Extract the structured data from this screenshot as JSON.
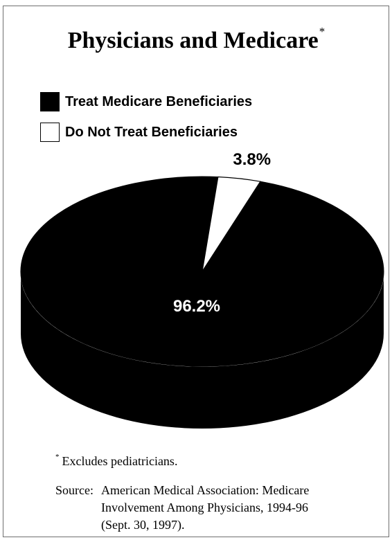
{
  "title": "Physicians and Medicare",
  "title_marker": "*",
  "legend": [
    {
      "label": "Treat Medicare Beneficiaries",
      "color": "#000000"
    },
    {
      "label": "Do Not Treat Beneficiaries",
      "color": "#ffffff"
    }
  ],
  "chart_data": {
    "type": "pie",
    "title": "Physicians and Medicare",
    "slices": [
      {
        "label": "Treat Medicare Beneficiaries",
        "value": 96.2,
        "display": "96.2%",
        "color": "#000000"
      },
      {
        "label": "Do Not Treat Beneficiaries",
        "value": 3.8,
        "display": "3.8%",
        "color": "#ffffff"
      }
    ],
    "legend_position": "top-left",
    "style": "3d"
  },
  "footnote": {
    "marker": "*",
    "text": "Excludes pediatricians."
  },
  "source": {
    "label": "Source:",
    "lines": [
      "American Medical Association: Medicare",
      "Involvement Among Physicians, 1994-96",
      "(Sept. 30, 1997)."
    ]
  }
}
